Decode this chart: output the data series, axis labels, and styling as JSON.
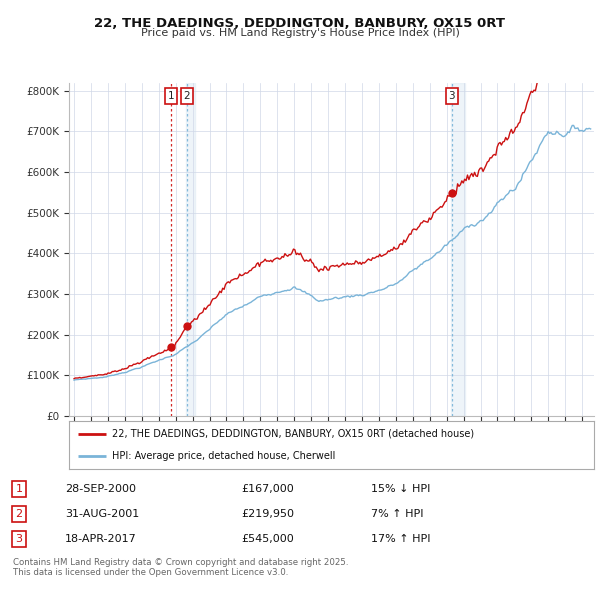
{
  "title": "22, THE DAEDINGS, DEDDINGTON, BANBURY, OX15 0RT",
  "subtitle": "Price paid vs. HM Land Registry's House Price Index (HPI)",
  "ylabel_ticks": [
    "£0",
    "£100K",
    "£200K",
    "£300K",
    "£400K",
    "£500K",
    "£600K",
    "£700K",
    "£800K"
  ],
  "ytick_values": [
    0,
    100000,
    200000,
    300000,
    400000,
    500000,
    600000,
    700000,
    800000
  ],
  "ylim": [
    0,
    820000
  ],
  "xlim_start": 1994.7,
  "xlim_end": 2025.7,
  "hpi_color": "#7ab4d8",
  "hpi_color_fill": "#deeaf4",
  "price_color": "#cc1111",
  "sale1_date": 2000.74,
  "sale1_price": 167000,
  "sale2_date": 2001.66,
  "sale2_price": 219950,
  "sale3_date": 2017.3,
  "sale3_price": 545000,
  "legend_price_label": "22, THE DAEDINGS, DEDDINGTON, BANBURY, OX15 0RT (detached house)",
  "legend_hpi_label": "HPI: Average price, detached house, Cherwell",
  "table_rows": [
    {
      "num": "1",
      "date": "28-SEP-2000",
      "price": "£167,000",
      "pct": "15% ↓ HPI"
    },
    {
      "num": "2",
      "date": "31-AUG-2001",
      "price": "£219,950",
      "pct": "7% ↑ HPI"
    },
    {
      "num": "3",
      "date": "18-APR-2017",
      "price": "£545,000",
      "pct": "17% ↑ HPI"
    }
  ],
  "footer": "Contains HM Land Registry data © Crown copyright and database right 2025.\nThis data is licensed under the Open Government Licence v3.0.",
  "background_color": "#ffffff",
  "grid_color": "#d0d8e8"
}
